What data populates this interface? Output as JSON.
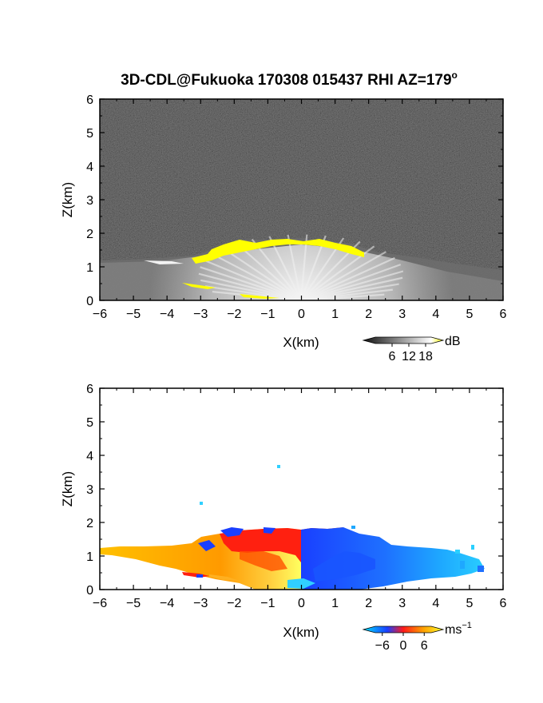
{
  "title_main": "3D-CDL@Fukuoka 170308 015437 RHI AZ=179",
  "title_sup": "o",
  "chart_data": [
    {
      "type": "heatmap",
      "name": "backscatter-intensity",
      "xlabel": "X(km)",
      "ylabel": "Z(km)",
      "xlim": [
        -6,
        6
      ],
      "ylim": [
        0,
        6
      ],
      "xticks": [
        "-6",
        "-5",
        "-4",
        "-3",
        "-2",
        "-1",
        "0",
        "1",
        "2",
        "3",
        "4",
        "5",
        "6"
      ],
      "yticks": [
        "0",
        "1",
        "2",
        "3",
        "4",
        "5",
        "6"
      ],
      "colorbar": {
        "unit": "dB",
        "ticks": [
          "6",
          "12",
          "18"
        ],
        "range": [
          0,
          20
        ],
        "colors": [
          "#111111",
          "#ffffff",
          "#ffff00"
        ]
      },
      "echo_top_km": [
        {
          "x": -6.0,
          "z": 1.1
        },
        {
          "x": -4.0,
          "z": 1.2
        },
        {
          "x": -3.0,
          "z": 1.3
        },
        {
          "x": -2.0,
          "z": 1.6
        },
        {
          "x": -1.0,
          "z": 1.7
        },
        {
          "x": 0.0,
          "z": 1.75
        },
        {
          "x": 1.0,
          "z": 1.65
        },
        {
          "x": 2.0,
          "z": 1.45
        },
        {
          "x": 3.0,
          "z": 1.2
        },
        {
          "x": 4.0,
          "z": 0.9
        },
        {
          "x": 5.0,
          "z": 0.6
        },
        {
          "x": 6.0,
          "z": 0.4
        }
      ]
    },
    {
      "type": "heatmap",
      "name": "doppler-velocity",
      "xlabel": "X(km)",
      "ylabel": "Z(km)",
      "xlim": [
        -6,
        6
      ],
      "ylim": [
        0,
        6
      ],
      "xticks": [
        "-6",
        "-5",
        "-4",
        "-3",
        "-2",
        "-1",
        "0",
        "1",
        "2",
        "3",
        "4",
        "5",
        "6"
      ],
      "yticks": [
        "0",
        "1",
        "2",
        "3",
        "4",
        "5",
        "6"
      ],
      "colorbar": {
        "unit": "ms",
        "unit_sup": "−1",
        "ticks": [
          "−6",
          "0",
          "6"
        ],
        "range": [
          -8,
          8
        ],
        "colors": [
          "#00e0ff",
          "#1a3fff",
          "#ff1a1a",
          "#ffa000",
          "#ffff30"
        ]
      },
      "velocity_by_x_km": [
        {
          "x": -6.0,
          "v": 6
        },
        {
          "x": -4.0,
          "v": 5
        },
        {
          "x": -2.0,
          "v": 3
        },
        {
          "x": -1.0,
          "v": 2
        },
        {
          "x": 0.0,
          "v": 0
        },
        {
          "x": 1.0,
          "v": -3
        },
        {
          "x": 2.0,
          "v": -4
        },
        {
          "x": 3.0,
          "v": -5
        },
        {
          "x": 4.0,
          "v": -6
        },
        {
          "x": 5.0,
          "v": -6
        }
      ]
    }
  ]
}
